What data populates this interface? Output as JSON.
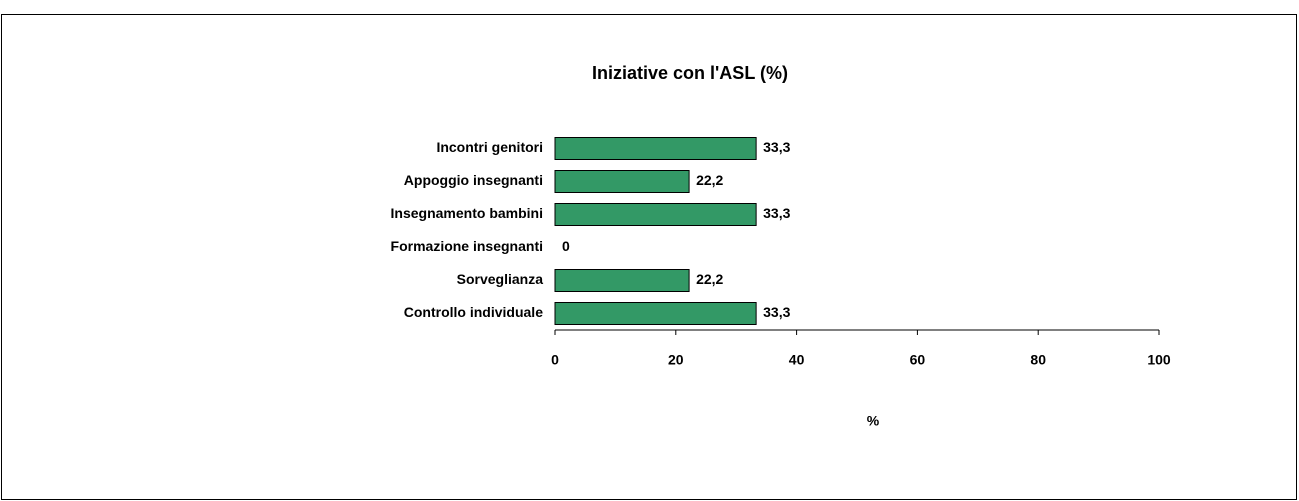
{
  "chart_data": {
    "type": "bar",
    "orientation": "horizontal",
    "title": "Iniziative con l'ASL (%)",
    "x_label": "%",
    "categories": [
      "Incontri genitori",
      "Appoggio insegnanti",
      "Insegnamento bambini",
      "Formazione insegnanti",
      "Sorveglianza",
      "Controllo individuale"
    ],
    "values": [
      33.3,
      22.2,
      33.3,
      0,
      22.2,
      33.3
    ],
    "value_labels": [
      "33,3",
      "22,2",
      "33,3",
      "0",
      "22,2",
      "33,3"
    ],
    "color": "#339966",
    "xlim": [
      0,
      100
    ],
    "xticks": [
      0,
      20,
      40,
      60,
      80,
      100
    ],
    "grid": false
  }
}
